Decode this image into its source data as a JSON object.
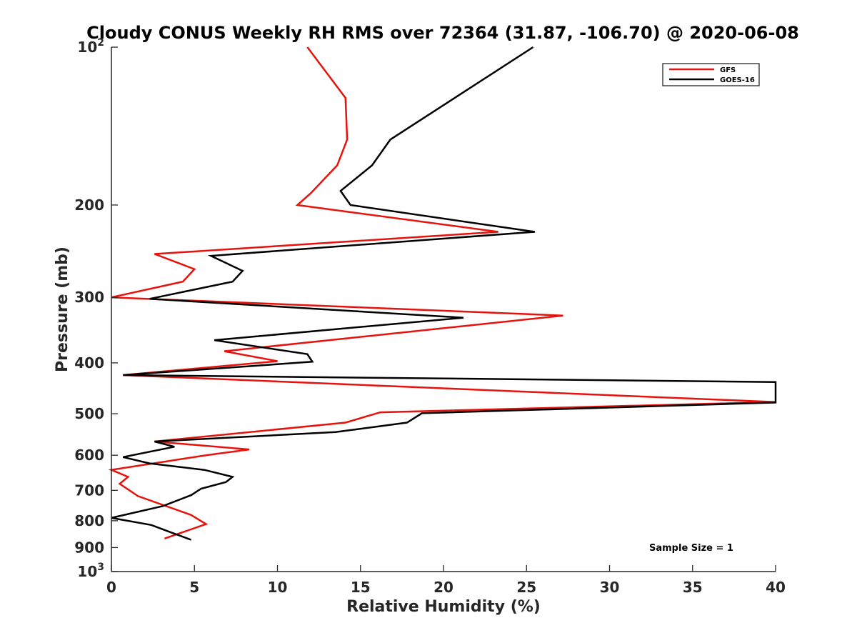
{
  "chart_data": {
    "type": "line",
    "title": "Cloudy CONUS Weekly RH RMS over 72364 (31.87, -106.70) @ 2020-06-08",
    "xlabel": "Relative Humidity (%)",
    "ylabel": "Pressure (mb)",
    "xlim": [
      0,
      40
    ],
    "ylim": [
      100,
      1000
    ],
    "y_scale": "log",
    "y_reversed": true,
    "grid": false,
    "legend_position": "top-right",
    "x_ticks": [
      "0",
      "5",
      "10",
      "15",
      "20",
      "25",
      "30",
      "35",
      "40"
    ],
    "y_ticks": [
      {
        "value": 100,
        "label": "10",
        "sup": "2"
      },
      {
        "value": 200,
        "label": "200",
        "sup": ""
      },
      {
        "value": 300,
        "label": "300",
        "sup": ""
      },
      {
        "value": 400,
        "label": "400",
        "sup": ""
      },
      {
        "value": 500,
        "label": "500",
        "sup": ""
      },
      {
        "value": 600,
        "label": "600",
        "sup": ""
      },
      {
        "value": 700,
        "label": "700",
        "sup": ""
      },
      {
        "value": 800,
        "label": "800",
        "sup": ""
      },
      {
        "value": 900,
        "label": "900",
        "sup": ""
      },
      {
        "value": 1000,
        "label": "10",
        "sup": "3"
      }
    ],
    "annotation": "Sample Size = 1",
    "series": [
      {
        "name": "GFS",
        "color": "#e8120c",
        "points": [
          [
            11.8,
            100
          ],
          [
            14.1,
            125
          ],
          [
            14.2,
            150
          ],
          [
            13.6,
            168
          ],
          [
            12.0,
            190
          ],
          [
            11.2,
            200
          ],
          [
            23.3,
            225
          ],
          [
            2.6,
            248
          ],
          [
            5.0,
            265
          ],
          [
            4.3,
            280
          ],
          [
            0.0,
            300
          ],
          [
            27.2,
            325
          ],
          [
            6.8,
            380
          ],
          [
            10.0,
            397
          ],
          [
            0.7,
            422
          ],
          [
            40.0,
            475
          ],
          [
            16.2,
            497
          ],
          [
            14.1,
            520
          ],
          [
            2.6,
            565
          ],
          [
            8.3,
            585
          ],
          [
            5.7,
            600
          ],
          [
            0.0,
            640
          ],
          [
            1.0,
            660
          ],
          [
            0.5,
            680
          ],
          [
            1.6,
            718
          ],
          [
            4.8,
            780
          ],
          [
            5.7,
            812
          ],
          [
            4.6,
            835
          ],
          [
            3.2,
            865
          ]
        ]
      },
      {
        "name": "GOES-16",
        "color": "#000000",
        "points": [
          [
            25.4,
            100
          ],
          [
            16.8,
            150
          ],
          [
            15.7,
            168
          ],
          [
            13.8,
            188
          ],
          [
            14.4,
            200
          ],
          [
            25.5,
            225
          ],
          [
            6.0,
            250
          ],
          [
            7.9,
            267
          ],
          [
            7.3,
            280
          ],
          [
            2.3,
            302
          ],
          [
            21.2,
            328
          ],
          [
            6.2,
            362
          ],
          [
            11.8,
            385
          ],
          [
            12.1,
            398
          ],
          [
            0.7,
            422
          ],
          [
            40.0,
            435
          ],
          [
            40.0,
            476
          ],
          [
            18.7,
            499
          ],
          [
            17.8,
            520
          ],
          [
            13.5,
            542
          ],
          [
            2.6,
            565
          ],
          [
            3.8,
            578
          ],
          [
            0.7,
            605
          ],
          [
            2.3,
            622
          ],
          [
            5.6,
            640
          ],
          [
            7.3,
            660
          ],
          [
            6.9,
            675
          ],
          [
            5.4,
            695
          ],
          [
            4.8,
            715
          ],
          [
            3.1,
            750
          ],
          [
            0.0,
            790
          ],
          [
            2.4,
            815
          ],
          [
            3.5,
            840
          ],
          [
            4.8,
            870
          ]
        ]
      }
    ]
  }
}
